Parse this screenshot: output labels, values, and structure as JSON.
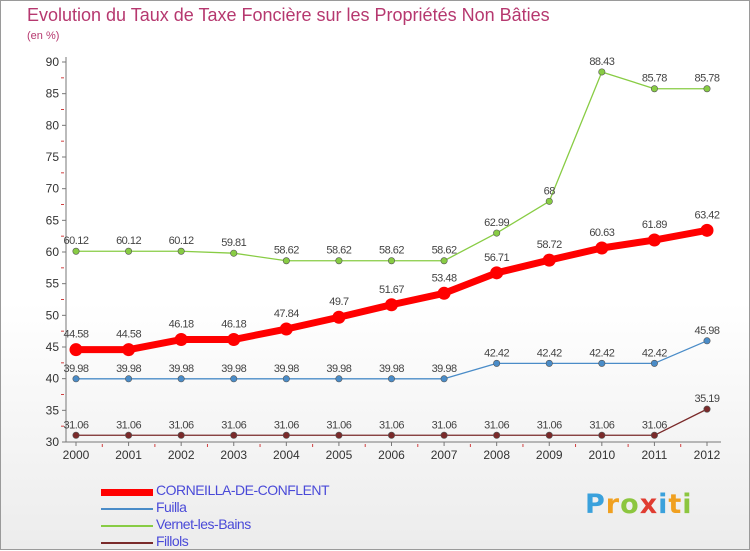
{
  "title": "Evolution du Taux de Taxe Foncière sur les Propriétés Non Bâties",
  "unit": "(en %)",
  "brand": {
    "letters": [
      {
        "ch": "P",
        "color": "#3aa1dc"
      },
      {
        "ch": "r",
        "color": "#f0a020"
      },
      {
        "ch": "o",
        "color": "#8cc63f"
      },
      {
        "ch": "x",
        "color": "#e03c31"
      },
      {
        "ch": "i",
        "color": "#3aa1dc"
      },
      {
        "ch": "t",
        "color": "#f0a020"
      },
      {
        "ch": "i",
        "color": "#8cc63f"
      }
    ]
  },
  "chart_data": {
    "type": "line",
    "x": [
      "2000",
      "2001",
      "2002",
      "2003",
      "2004",
      "2005",
      "2006",
      "2007",
      "2008",
      "2009",
      "2010",
      "2011",
      "2012"
    ],
    "ylim": [
      30,
      90
    ],
    "yticks": [
      30,
      35,
      40,
      45,
      50,
      55,
      60,
      65,
      70,
      75,
      80,
      85,
      90
    ],
    "grid": false,
    "legend_position": "bottom-left",
    "series": [
      {
        "name": "CORNEILLA-DE-CONFLENT",
        "color": "#ff0000",
        "emphasis": true,
        "values": [
          44.58,
          44.58,
          46.18,
          46.18,
          47.84,
          49.7,
          51.67,
          53.48,
          56.71,
          58.72,
          60.63,
          61.89,
          63.42
        ],
        "labels": [
          "44.58",
          "44.58",
          "46.18",
          "46.18",
          "47.84",
          "49.7",
          "51.67",
          "53.48",
          "56.71",
          "58.72",
          "60.63",
          "61.89",
          "63.42"
        ]
      },
      {
        "name": "Fuilla",
        "color": "#4a8cc8",
        "emphasis": false,
        "values": [
          39.98,
          39.98,
          39.98,
          39.98,
          39.98,
          39.98,
          39.98,
          39.98,
          42.42,
          42.42,
          42.42,
          42.42,
          45.98
        ],
        "labels": [
          "39.98",
          "39.98",
          "39.98",
          "39.98",
          "39.98",
          "39.98",
          "39.98",
          "39.98",
          "42.42",
          "42.42",
          "42.42",
          "42.42",
          "45.98"
        ]
      },
      {
        "name": "Vernet-les-Bains",
        "color": "#88cc44",
        "emphasis": false,
        "values": [
          60.12,
          60.12,
          60.12,
          59.81,
          58.62,
          58.62,
          58.62,
          58.62,
          62.99,
          68,
          88.43,
          85.78,
          85.78
        ],
        "labels": [
          "60.12",
          "60.12",
          "60.12",
          "59.81",
          "58.62",
          "58.62",
          "58.62",
          "58.62",
          "62.99",
          "68",
          "88.43",
          "85.78",
          "85.78"
        ]
      },
      {
        "name": "Fillols",
        "color": "#7a2a2a",
        "emphasis": false,
        "values": [
          31.06,
          31.06,
          31.06,
          31.06,
          31.06,
          31.06,
          31.06,
          31.06,
          31.06,
          31.06,
          31.06,
          31.06,
          35.19
        ],
        "labels": [
          "31.06",
          "31.06",
          "31.06",
          "31.06",
          "31.06",
          "31.06",
          "31.06",
          "31.06",
          "31.06",
          "31.06",
          "31.06",
          "31.06",
          "35.19"
        ]
      }
    ]
  }
}
